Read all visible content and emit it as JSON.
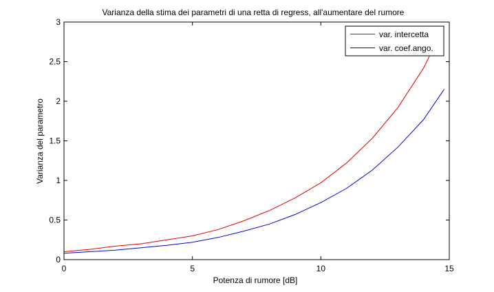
{
  "chart_data": {
    "type": "line",
    "title": "Varianza della stima dei parametri di una retta di regress, all'aumentare del rumore",
    "xlabel": "Potenza di rumore [dB]",
    "ylabel": "Varianza del parametro",
    "xlim": [
      0,
      15
    ],
    "ylim": [
      0,
      3
    ],
    "xticks": [
      0,
      5,
      10,
      15
    ],
    "yticks": [
      0,
      0.5,
      1,
      1.5,
      2,
      2.5,
      3
    ],
    "xtick_labels": [
      "0",
      "5",
      "10",
      "15"
    ],
    "ytick_labels": [
      "0",
      "0.5",
      "1",
      "1.5",
      "2",
      "2.5",
      "3"
    ],
    "grid": false,
    "legend_position": "top-right",
    "x": [
      0,
      1,
      2,
      3,
      4,
      5,
      6,
      7,
      8,
      9,
      10,
      11,
      12,
      13,
      14,
      14.8
    ],
    "series": [
      {
        "name": "var. intercetta",
        "color": "#e00000",
        "values": [
          0.1,
          0.13,
          0.17,
          0.2,
          0.25,
          0.3,
          0.38,
          0.49,
          0.62,
          0.78,
          0.97,
          1.22,
          1.53,
          1.92,
          2.42,
          2.95
        ]
      },
      {
        "name": "var. coef.ango.",
        "color": "#0000e0",
        "values": [
          0.08,
          0.1,
          0.12,
          0.15,
          0.18,
          0.22,
          0.28,
          0.36,
          0.45,
          0.57,
          0.72,
          0.9,
          1.13,
          1.42,
          1.77,
          2.15
        ]
      }
    ]
  }
}
